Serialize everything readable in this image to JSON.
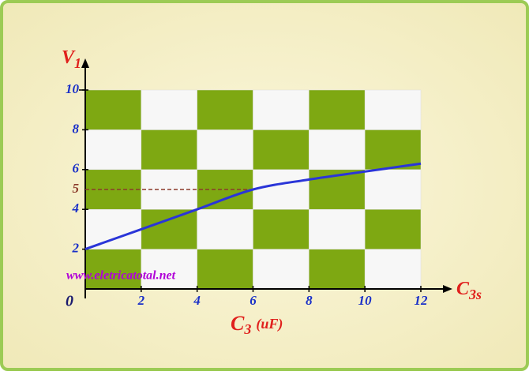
{
  "chart_data": {
    "type": "line",
    "y_label": {
      "main": "V",
      "sub": "1"
    },
    "x_label": {
      "main": "C",
      "sub": "3",
      "unit": "(uF)"
    },
    "x_arrow_label": {
      "main": "C",
      "sub": "3s"
    },
    "watermark": "www.eletricatotal.net",
    "x": [
      0,
      2,
      4,
      6,
      8,
      10,
      12
    ],
    "series": [
      {
        "color": "#2a35d8",
        "values": [
          2,
          3,
          4,
          5,
          5.5,
          5.9,
          6.3
        ]
      }
    ],
    "xlim": [
      0,
      12
    ],
    "ylim": [
      0,
      10
    ],
    "xticks": [
      2,
      4,
      6,
      8,
      10,
      12
    ],
    "yticks": [
      2,
      4,
      6,
      8,
      10
    ],
    "reference": {
      "value": 5,
      "x_end": 6,
      "color": "#8b3a2a"
    },
    "checker_colors": [
      "#7ea812",
      "#f7f7f7"
    ]
  }
}
